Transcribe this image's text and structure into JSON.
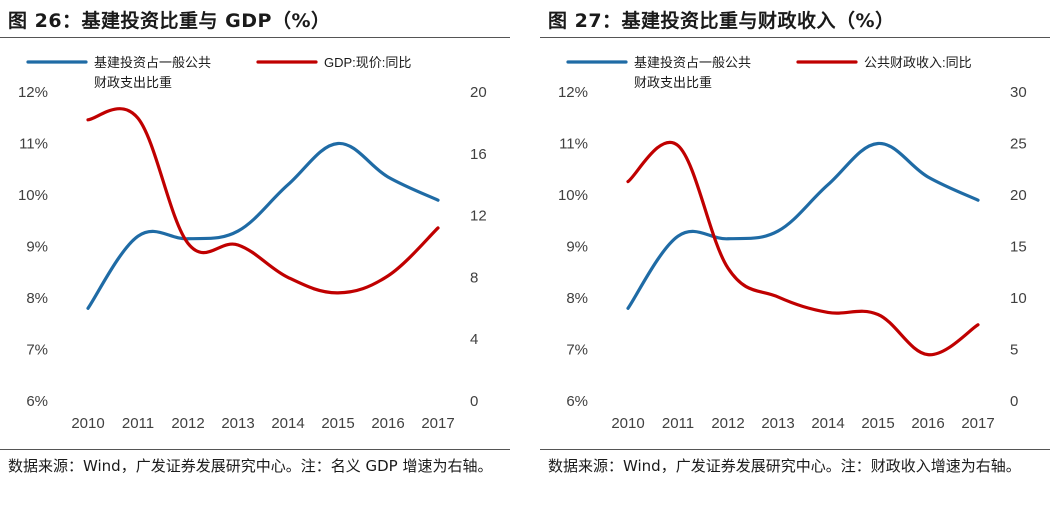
{
  "panels": [
    {
      "title": "图 26：基建投资比重与 GDP（%）",
      "source": "数据来源：Wind，广发证券发展研究中心。注：名义 GDP 增速为右轴。",
      "chart_data": {
        "type": "line",
        "categories": [
          "2010",
          "2011",
          "2012",
          "2013",
          "2014",
          "2015",
          "2016",
          "2017"
        ],
        "series": [
          {
            "name": "基建投资占一般公共财政支出比重",
            "axis": "left",
            "color": "#1f6ba5",
            "values": [
              7.8,
              9.2,
              9.15,
              9.3,
              10.2,
              11.0,
              10.35,
              9.9
            ]
          },
          {
            "name": "GDP:现价:同比",
            "axis": "right",
            "color": "#c00000",
            "values": [
              18.2,
              18.3,
              10.2,
              10.1,
              8.0,
              7.0,
              8.1,
              11.2
            ]
          }
        ],
        "y_left": {
          "min": 6,
          "max": 12,
          "ticks": [
            "6%",
            "7%",
            "8%",
            "9%",
            "10%",
            "11%",
            "12%"
          ]
        },
        "y_right": {
          "min": 0,
          "max": 20,
          "ticks": [
            "0",
            "4",
            "8",
            "12",
            "16",
            "20"
          ]
        },
        "grid": false,
        "legend": "top"
      }
    },
    {
      "title": "图 27：基建投资比重与财政收入（%）",
      "source": "数据来源：Wind，广发证券发展研究中心。注：财政收入增速为右轴。",
      "chart_data": {
        "type": "line",
        "categories": [
          "2010",
          "2011",
          "2012",
          "2013",
          "2014",
          "2015",
          "2016",
          "2017"
        ],
        "series": [
          {
            "name": "基建投资占一般公共财政支出比重",
            "axis": "left",
            "color": "#1f6ba5",
            "values": [
              7.8,
              9.2,
              9.15,
              9.3,
              10.2,
              11.0,
              10.35,
              9.9
            ]
          },
          {
            "name": "公共财政收入:同比",
            "axis": "right",
            "color": "#c00000",
            "values": [
              21.3,
              24.8,
              12.9,
              10.1,
              8.6,
              8.4,
              4.5,
              7.4
            ]
          }
        ],
        "y_left": {
          "min": 6,
          "max": 12,
          "ticks": [
            "6%",
            "7%",
            "8%",
            "9%",
            "10%",
            "11%",
            "12%"
          ]
        },
        "y_right": {
          "min": 0,
          "max": 30,
          "ticks": [
            "0",
            "5",
            "10",
            "15",
            "20",
            "25",
            "30"
          ]
        },
        "grid": false,
        "legend": "top"
      }
    }
  ]
}
